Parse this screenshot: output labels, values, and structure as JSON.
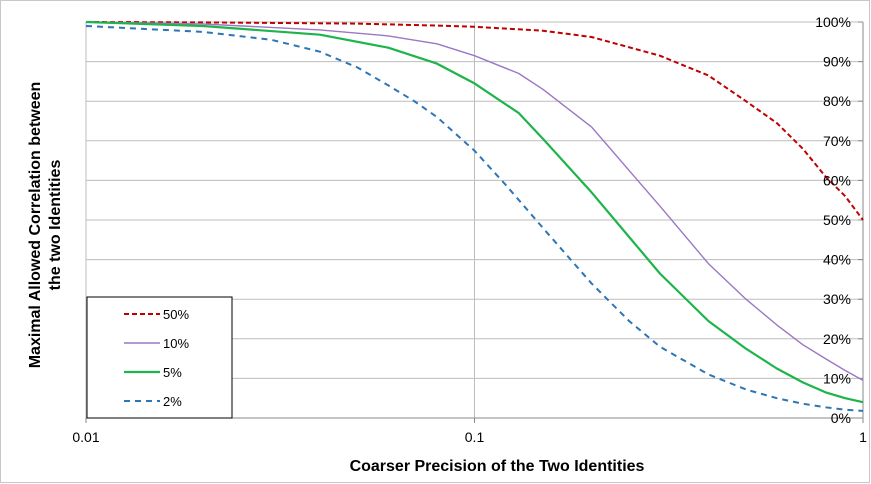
{
  "chart_data": {
    "type": "line",
    "title": "",
    "xlabel": "Coarser Precision of the Two Identities",
    "ylabel": "Maximal Allowed Correlation between the two Identities",
    "ylabel_lines": [
      "Maximal Allowed Correlation between",
      "the two Identities"
    ],
    "x_scale": "log",
    "xlim": [
      0.01,
      1
    ],
    "ylim": [
      0,
      1
    ],
    "x_ticks": [
      0.01,
      0.1,
      1
    ],
    "x_tick_labels": [
      "0.01",
      "0.1",
      "1"
    ],
    "y_ticks": [
      0,
      0.1,
      0.2,
      0.3,
      0.4,
      0.5,
      0.6,
      0.7,
      0.8,
      0.9,
      1.0
    ],
    "y_tick_labels": [
      "0%",
      "10%",
      "20%",
      "30%",
      "40%",
      "50%",
      "60%",
      "70%",
      "80%",
      "90%",
      "100%"
    ],
    "y_axis_position": "right",
    "grid": "horizontal",
    "legend_position": "bottom-left",
    "series": [
      {
        "name": "50%",
        "color": "#c00000",
        "style": "dashed",
        "x": [
          0.01,
          0.02,
          0.05,
          0.08,
          0.1,
          0.15,
          0.2,
          0.3,
          0.4,
          0.5,
          0.6,
          0.7,
          0.8,
          0.9,
          1.0
        ],
        "y": [
          1.0,
          0.999,
          0.996,
          0.991,
          0.988,
          0.978,
          0.962,
          0.915,
          0.865,
          0.8,
          0.745,
          0.68,
          0.61,
          0.56,
          0.5
        ]
      },
      {
        "name": "10%",
        "color": "#9b77c5",
        "style": "solid",
        "x": [
          0.01,
          0.02,
          0.04,
          0.06,
          0.08,
          0.1,
          0.13,
          0.15,
          0.2,
          0.3,
          0.4,
          0.5,
          0.6,
          0.7,
          0.8,
          0.9,
          1.0
        ],
        "y": [
          1.0,
          0.995,
          0.98,
          0.965,
          0.945,
          0.915,
          0.87,
          0.83,
          0.735,
          0.535,
          0.39,
          0.3,
          0.235,
          0.185,
          0.15,
          0.12,
          0.095
        ]
      },
      {
        "name": "5%",
        "color": "#1db44a",
        "style": "solid",
        "x": [
          0.01,
          0.02,
          0.04,
          0.06,
          0.08,
          0.1,
          0.13,
          0.15,
          0.2,
          0.3,
          0.4,
          0.5,
          0.6,
          0.7,
          0.8,
          0.9,
          1.0
        ],
        "y": [
          1.0,
          0.99,
          0.968,
          0.935,
          0.895,
          0.845,
          0.77,
          0.705,
          0.57,
          0.365,
          0.245,
          0.175,
          0.125,
          0.09,
          0.065,
          0.05,
          0.04
        ]
      },
      {
        "name": "2%",
        "color": "#2e75b6",
        "style": "dashed",
        "x": [
          0.01,
          0.02,
          0.03,
          0.04,
          0.05,
          0.06,
          0.07,
          0.08,
          0.1,
          0.12,
          0.15,
          0.2,
          0.25,
          0.3,
          0.4,
          0.5,
          0.6,
          0.7,
          0.8,
          0.9,
          1.0
        ],
        "y": [
          0.99,
          0.975,
          0.955,
          0.925,
          0.885,
          0.84,
          0.8,
          0.76,
          0.675,
          0.59,
          0.48,
          0.34,
          0.245,
          0.18,
          0.11,
          0.072,
          0.05,
          0.036,
          0.027,
          0.021,
          0.018
        ]
      }
    ]
  }
}
